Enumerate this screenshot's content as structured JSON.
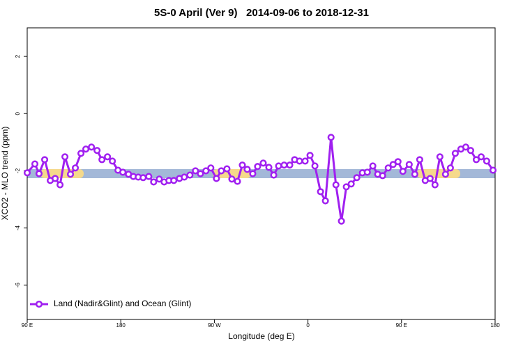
{
  "chart_data": {
    "type": "line",
    "title": "5S-0 April (Ver 9)   2014-09-06 to 2018-12-31",
    "x_label": "Longitude (deg E)",
    "y_label": "XCO2 - MLO trend (ppm)",
    "xlim": [
      90,
      540
    ],
    "xticks": [
      {
        "value": 90,
        "label": "90 E"
      },
      180,
      {
        "value": 270,
        "label": "90 W"
      },
      {
        "value": 360,
        "label": "0"
      },
      {
        "value": 450,
        "label": "90 E"
      },
      {
        "value": 540,
        "label": "180"
      }
    ],
    "ylim": [
      -7.2,
      3
    ],
    "yticks": [
      2,
      0,
      -2,
      -4,
      -6
    ],
    "legend": "bottom-left",
    "x": [
      90,
      97.4,
      101.4,
      106.8,
      112.2,
      116.9,
      121.6,
      126.3,
      131.6,
      136.3,
      141.7,
      146.4,
      151.8,
      157.2,
      161.9,
      167.2,
      171.9,
      177.3,
      182,
      187.4,
      192.1,
      196.8,
      201.5,
      206.9,
      211.6,
      217,
      221.7,
      226.3,
      231,
      236.4,
      241.1,
      246.5,
      251.8,
      256.6,
      261.9,
      266.6,
      272,
      276.7,
      282.1,
      286.8,
      292.2,
      296.9,
      301.6,
      306.9,
      311.6,
      317,
      322.4,
      327.1,
      331.8,
      337.1,
      342.5,
      347.2,
      351.9,
      357.3,
      362,
      366.7,
      372.1,
      376.8,
      382.2,
      386.9,
      392.2,
      396.9,
      401.6,
      407,
      412.4,
      417.1,
      422.4,
      427.1,
      431.8,
      437.2,
      441.9,
      446.6,
      451.3,
      457.4,
      462.8,
      467.5,
      472.8,
      477.5,
      482.2,
      486.9,
      492.3,
      497,
      501.7,
      507.1,
      511.8,
      516.5,
      521.9,
      526.6,
      531.9,
      538
    ],
    "series": [
      {
        "name": "Land (Nadir&Glint) and Ocean (Glint)",
        "color": "#a020f0",
        "values": [
          -2.07,
          -1.76,
          -2.1,
          -1.61,
          -2.34,
          -2.27,
          -2.49,
          -1.51,
          -2.12,
          -1.9,
          -1.39,
          -1.24,
          -1.17,
          -1.29,
          -1.61,
          -1.51,
          -1.66,
          -1.98,
          -2.05,
          -2.12,
          -2.2,
          -2.22,
          -2.24,
          -2.2,
          -2.39,
          -2.29,
          -2.39,
          -2.34,
          -2.34,
          -2.27,
          -2.22,
          -2.15,
          -2.0,
          -2.1,
          -2.0,
          -1.9,
          -2.27,
          -2.0,
          -1.93,
          -2.29,
          -2.37,
          -1.8,
          -1.95,
          -2.1,
          -1.85,
          -1.73,
          -1.88,
          -2.15,
          -1.83,
          -1.8,
          -1.8,
          -1.61,
          -1.66,
          -1.66,
          -1.46,
          -1.83,
          -2.73,
          -3.05,
          -0.83,
          -2.49,
          -3.76,
          -2.56,
          -2.46,
          -2.24,
          -2.07,
          -2.05,
          -1.83,
          -2.12,
          -2.17,
          -1.9,
          -1.78,
          -1.68,
          -2.02,
          -1.78,
          -2.12,
          -1.61,
          -2.34,
          -2.27,
          -2.49,
          -1.51,
          -2.12,
          -1.9,
          -1.39,
          -1.24,
          -1.17,
          -1.29,
          -1.61,
          -1.51,
          -1.66,
          -1.98
        ]
      }
    ]
  }
}
